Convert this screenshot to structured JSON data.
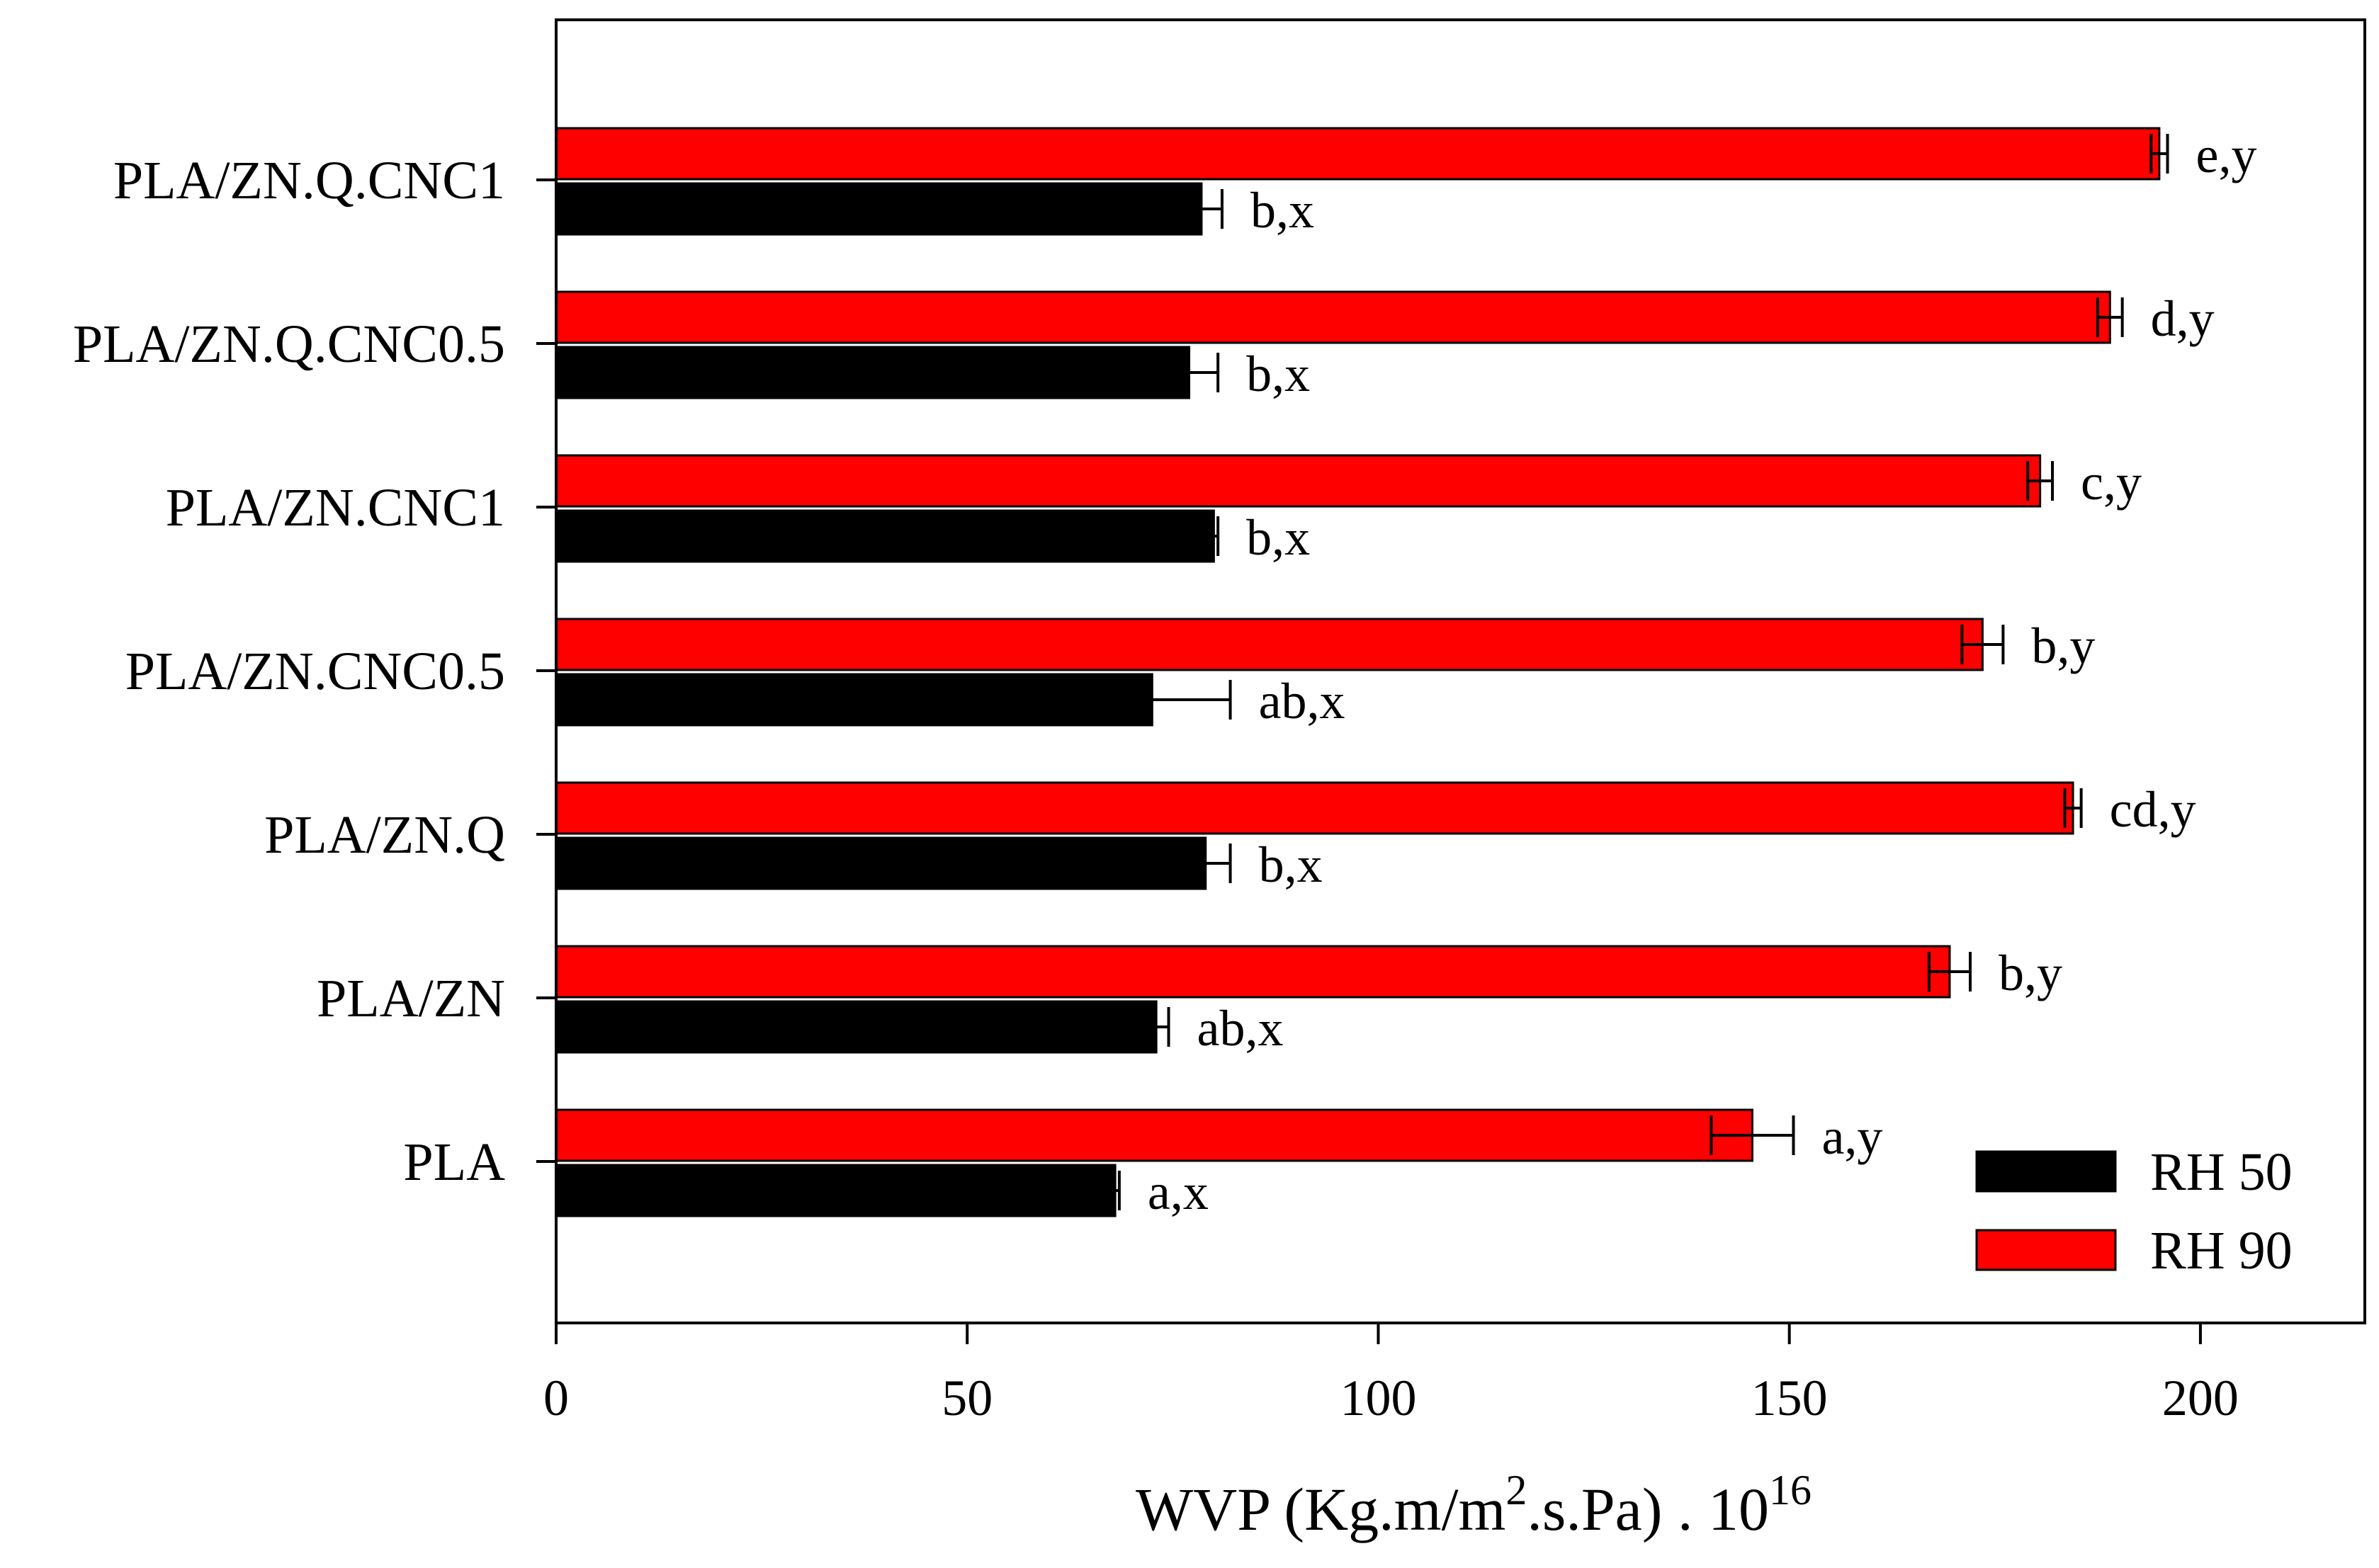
{
  "chart_data": {
    "type": "bar",
    "orientation": "horizontal",
    "categories": [
      "PLA",
      "PLA/ZN",
      "PLA/ZN.Q",
      "PLA/ZN.CNC0.5",
      "PLA/ZN.CNC1",
      "PLA/ZN.Q.CNC0.5",
      "PLA/ZN.Q.CNC1"
    ],
    "series": [
      {
        "name": "RH 50",
        "color": "#000000",
        "values": [
          68,
          73,
          79,
          72.5,
          80,
          77,
          78.5
        ],
        "errors": [
          0.5,
          1.5,
          3,
          9.5,
          0.5,
          3.5,
          2.5
        ],
        "labels": [
          "a,x",
          "ab,x",
          "b,x",
          "ab,x",
          "b,x",
          "b,x",
          "b,x"
        ]
      },
      {
        "name": "RH 90",
        "color": "#ff0000",
        "values": [
          145.5,
          169.5,
          184.5,
          173.5,
          180.5,
          189,
          195
        ],
        "errors": [
          5,
          2.5,
          1,
          2.5,
          1.5,
          1.5,
          1
        ],
        "labels": [
          "a,y",
          "b,y",
          "cd,y",
          "b,y",
          "c,y",
          "d,y",
          "e,y"
        ]
      }
    ],
    "x_ticks": [
      "0",
      "50",
      "100",
      "150",
      "200"
    ],
    "xlabel": {
      "main": "WVP (Kg.m/m",
      "sup1": "2",
      "mid": ".s.Pa) . 10",
      "sup2": "16"
    },
    "ylabel": "",
    "xlim": [
      0,
      220
    ],
    "grid": false,
    "legend_position": "bottom-right"
  }
}
